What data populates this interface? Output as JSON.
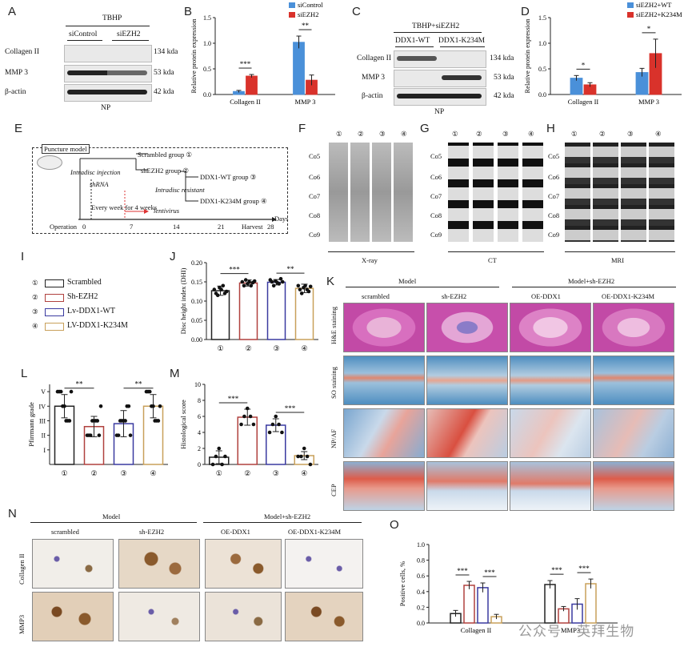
{
  "labels": {
    "A": "A",
    "B": "B",
    "C": "C",
    "D": "D",
    "E": "E",
    "F": "F",
    "G": "G",
    "H": "H",
    "I": "I",
    "J": "J",
    "K": "K",
    "L": "L",
    "M": "M",
    "N": "N",
    "O": "O"
  },
  "panelA": {
    "treatment": "TBHP",
    "groups": [
      "siControl",
      "siEZH2"
    ],
    "rows": [
      "Collagen II",
      "MMP 3",
      "β-actin"
    ],
    "sizes": [
      "134 kda",
      "53 kda",
      "42 kda"
    ],
    "footer": "NP"
  },
  "panelC": {
    "treatment": "TBHP+siEZH2",
    "groups": [
      "DDX1-WT",
      "DDX1-K234M"
    ],
    "rows": [
      "Collagen II",
      "MMP 3",
      "β-actin"
    ],
    "sizes": [
      "134 kda",
      "53 kda",
      "42 kda"
    ],
    "footer": "NP"
  },
  "panelE": {
    "model": "Puncture model",
    "groups": [
      "Scrambled group ①",
      "shEZH2 group ②",
      "DDX1-WT group ③",
      "DDX1-K234M group ④"
    ],
    "notes": [
      "Intradisc injection",
      "shRNA",
      "Intradisc resistant",
      "lentivirus",
      "Every week for 4 weeks"
    ],
    "axis": {
      "start": "Operation",
      "ticks": [
        "0",
        "7",
        "14",
        "21",
        "28"
      ],
      "harvest": "Harvest",
      "unit": "Days"
    }
  },
  "imaging": {
    "vertebrae": [
      "Co5",
      "Co6",
      "Co7",
      "Co8",
      "Co9"
    ],
    "circles": [
      "①",
      "②",
      "③",
      "④"
    ],
    "captions": [
      "X-ray",
      "CT",
      "MRI"
    ]
  },
  "legendI": {
    "items": [
      {
        "n": "①",
        "name": "Scrambled",
        "color": "#222222"
      },
      {
        "n": "②",
        "name": "Sh-EZH2",
        "color": "#b0413e"
      },
      {
        "n": "③",
        "name": "Lv-DDX1-WT",
        "color": "#3a3aa0"
      },
      {
        "n": "④",
        "name": "LV-DDX1-K234M",
        "color": "#c8a05a"
      }
    ]
  },
  "panelK": {
    "headers": [
      "Model",
      "Model+sh-EZH2"
    ],
    "cols": [
      "scrambled",
      "sh-EZH2",
      "OE-DDX1",
      "OE-DDX1-K234M"
    ],
    "rows": [
      "H&E staining",
      "SO staining",
      "NP/AF",
      "CEP"
    ]
  },
  "panelN": {
    "headers": [
      "Model",
      "Model+sh-EZH2"
    ],
    "cols": [
      "scrambled",
      "sh-EZH2",
      "OE-DDX1",
      "OE-DDX1-K234M"
    ],
    "rows": [
      "Collagen II",
      "MMP3"
    ]
  },
  "watermark": "公众号 · 英拜生物",
  "chart_data": [
    {
      "id": "B",
      "type": "bar",
      "categories": [
        "Collagen II",
        "MMP 3"
      ],
      "ylabel": "Relative protein expression",
      "ylim": [
        0,
        1.5
      ],
      "yticks": [
        "0.0",
        "0.5",
        "1.0",
        "1.5"
      ],
      "series": [
        {
          "name": "siControl",
          "color": "#4a90d9",
          "values": [
            0.06,
            1.02
          ],
          "err": [
            0.02,
            0.12
          ]
        },
        {
          "name": "siEZH2",
          "color": "#d9322b",
          "values": [
            0.36,
            0.28
          ],
          "err": [
            0.03,
            0.1
          ]
        }
      ],
      "sig": [
        "***",
        "**"
      ]
    },
    {
      "id": "D",
      "type": "bar",
      "categories": [
        "Collagen II",
        "MMP 3"
      ],
      "ylabel": "Relative protein expression",
      "ylim": [
        0,
        1.5
      ],
      "yticks": [
        "0.0",
        "0.5",
        "1.0",
        "1.5"
      ],
      "series": [
        {
          "name": "siEZH2+WT",
          "color": "#4a90d9",
          "values": [
            0.32,
            0.43
          ],
          "err": [
            0.05,
            0.08
          ]
        },
        {
          "name": "siEZH2+K234M",
          "color": "#d9322b",
          "values": [
            0.19,
            0.8
          ],
          "err": [
            0.04,
            0.28
          ]
        }
      ],
      "sig": [
        "*",
        "*"
      ]
    },
    {
      "id": "J",
      "type": "bar",
      "categories": [
        "①",
        "②",
        "③",
        "④"
      ],
      "ylabel": "Disc height index (DHI)",
      "ylim": [
        0,
        0.2
      ],
      "yticks": [
        "0.00",
        "0.05",
        "0.10",
        "0.15",
        "0.20"
      ],
      "values": [
        0.127,
        0.147,
        0.149,
        0.133
      ],
      "err": [
        0.012,
        0.008,
        0.007,
        0.011
      ],
      "colors": [
        "#222222",
        "#b0413e",
        "#3a3aa0",
        "#c8a05a"
      ],
      "points": [
        [
          0.13,
          0.12,
          0.115,
          0.135,
          0.13,
          0.14,
          0.12,
          0.125
        ],
        [
          0.15,
          0.14,
          0.155,
          0.145,
          0.15,
          0.14,
          0.148,
          0.152
        ],
        [
          0.155,
          0.15,
          0.14,
          0.152,
          0.148,
          0.145,
          0.158,
          0.15
        ],
        [
          0.14,
          0.13,
          0.12,
          0.135,
          0.14,
          0.13,
          0.125,
          0.138
        ]
      ],
      "sig": [
        "***",
        "**"
      ]
    },
    {
      "id": "L",
      "type": "bar",
      "categories": [
        "①",
        "②",
        "③",
        "④"
      ],
      "ylabel": "Pfirrmann grade",
      "ylim": [
        0,
        5.5
      ],
      "yticks": [
        "I",
        "II",
        "III",
        "IV",
        "V"
      ],
      "values": [
        4.0,
        2.6,
        2.8,
        4.0
      ],
      "err": [
        0.8,
        0.7,
        0.9,
        0.8
      ],
      "colors": [
        "#222222",
        "#b0413e",
        "#3a3aa0",
        "#c8a05a"
      ],
      "points": [
        [
          5,
          5,
          5,
          4,
          4,
          3,
          3,
          3,
          5
        ],
        [
          2,
          2,
          2,
          3,
          3,
          3,
          3,
          2,
          4
        ],
        [
          2,
          2,
          3,
          3,
          3,
          3,
          4,
          4,
          2
        ],
        [
          5,
          5,
          5,
          4,
          4,
          3,
          3,
          3,
          4
        ]
      ],
      "sig": [
        "**",
        "**"
      ]
    },
    {
      "id": "M",
      "type": "bar",
      "categories": [
        "①",
        "②",
        "③",
        "④"
      ],
      "ylabel": "Histological score",
      "ylim": [
        0,
        10
      ],
      "yticks": [
        "0",
        "2",
        "4",
        "6",
        "8",
        "10"
      ],
      "values": [
        0.9,
        5.9,
        4.9,
        1.1
      ],
      "err": [
        0.8,
        1.0,
        0.8,
        0.5
      ],
      "colors": [
        "#222222",
        "#b0413e",
        "#3a3aa0",
        "#c8a05a"
      ],
      "points": [
        [
          0,
          1,
          2,
          0,
          1
        ],
        [
          5,
          6,
          7,
          6,
          5
        ],
        [
          4,
          5,
          6,
          5,
          4
        ],
        [
          1,
          1,
          2,
          1,
          0
        ]
      ],
      "sig": [
        "***",
        "***"
      ]
    },
    {
      "id": "O",
      "type": "bar",
      "categories": [
        "Collagen II",
        "MMP3"
      ],
      "ylabel": "Positive cells, %",
      "ylim": [
        0,
        1.0
      ],
      "yticks": [
        "0.0",
        "0.2",
        "0.4",
        "0.6",
        "0.8",
        "1.0"
      ],
      "series": [
        {
          "name": "Scrambled",
          "color": "#222222",
          "values": [
            0.12,
            0.49
          ],
          "err": [
            0.04,
            0.05
          ]
        },
        {
          "name": "Sh-EZH2",
          "color": "#b0413e",
          "values": [
            0.48,
            0.18
          ],
          "err": [
            0.05,
            0.03
          ]
        },
        {
          "name": "Lv-DDX1-WT",
          "color": "#3a3aa0",
          "values": [
            0.45,
            0.24
          ],
          "err": [
            0.06,
            0.07
          ]
        },
        {
          "name": "LV-DDX1-K234M",
          "color": "#c8a05a",
          "values": [
            0.08,
            0.5
          ],
          "err": [
            0.03,
            0.06
          ]
        }
      ],
      "sig": [
        "***",
        "***",
        "***",
        "***"
      ]
    }
  ]
}
